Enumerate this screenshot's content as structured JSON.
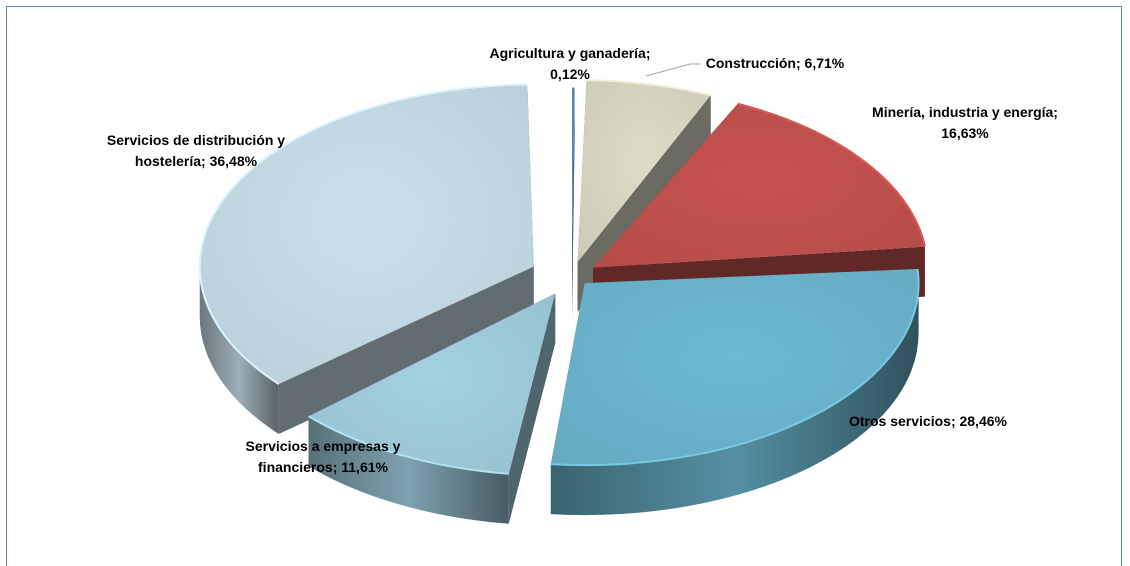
{
  "chart_data": {
    "type": "pie",
    "title": "",
    "labels": [
      "Agricultura y ganadería",
      "Construcción",
      "Minería, industria y energía",
      "Otros servicios",
      "Servicios a empresas y financieros",
      "Servicios de distribución y hostelería"
    ],
    "values": [
      0.12,
      6.71,
      16.63,
      28.46,
      11.61,
      36.48
    ],
    "data_labels": [
      [
        "Agricultura y ganadería;",
        "0,12%"
      ],
      [
        "Construcción; 6,71%"
      ],
      [
        "Minería, industria y energía;",
        "16,63%"
      ],
      [
        "Otros servicios; 28,46%"
      ],
      [
        "Servicios a empresas y",
        "financieros; 11,61%"
      ],
      [
        "Servicios de distribución y",
        "hostelería; 36,48%"
      ]
    ],
    "colors": [
      "#4f86b5",
      "#d8d6c1",
      "#c0504d",
      "#6ab4cc",
      "#9ecbdb",
      "#c3dae4"
    ],
    "style": "3d-exploded",
    "legend": "none"
  }
}
